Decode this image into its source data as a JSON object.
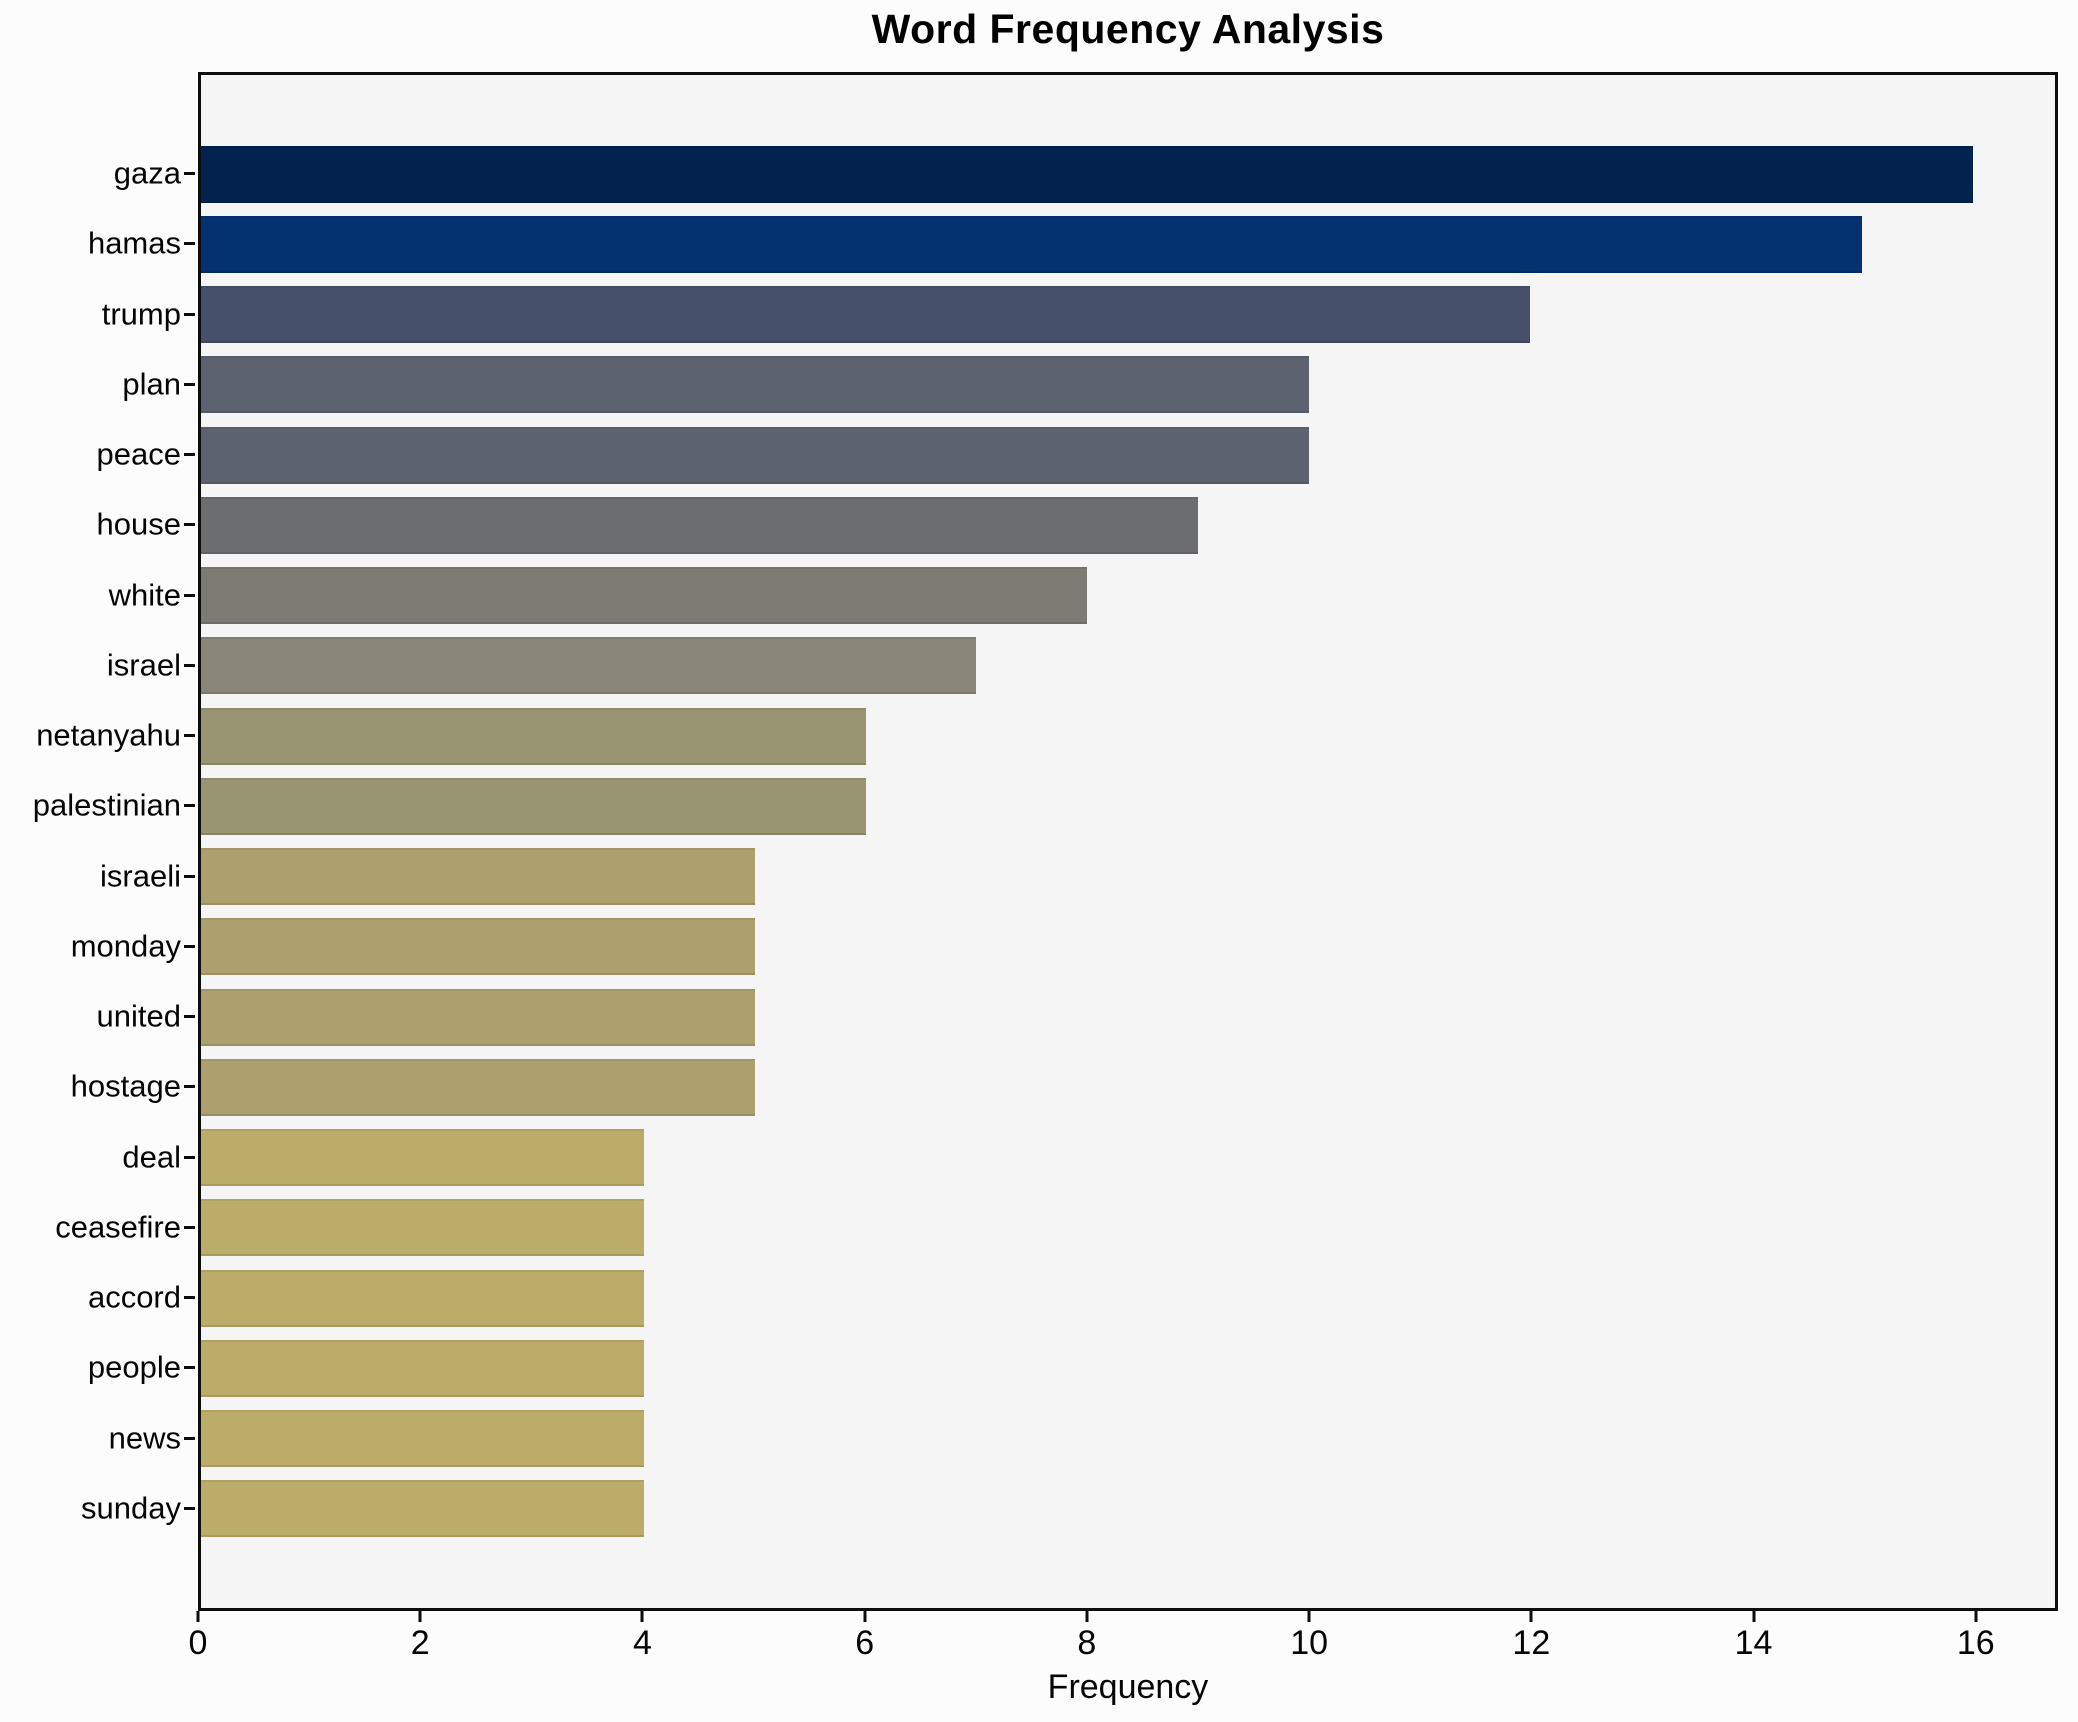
{
  "title": "Word Frequency Analysis",
  "xlabel": "Frequency",
  "chart_data": {
    "type": "bar",
    "orientation": "horizontal",
    "title": "Word Frequency Analysis",
    "xlabel": "Frequency",
    "ylabel": "",
    "grid": false,
    "legend": false,
    "xlim": [
      0,
      16.74
    ],
    "xticks": [
      "0",
      "2",
      "4",
      "6",
      "8",
      "10",
      "12",
      "14",
      "16"
    ],
    "xtick_values": [
      0,
      2,
      4,
      6,
      8,
      10,
      12,
      14,
      16
    ],
    "categories": [
      "gaza",
      "hamas",
      "trump",
      "plan",
      "peace",
      "house",
      "white",
      "israel",
      "netanyahu",
      "palestinian",
      "israeli",
      "monday",
      "united",
      "hostage",
      "deal",
      "ceasefire",
      "accord",
      "people",
      "news",
      "sunday"
    ],
    "values": [
      16,
      15,
      12,
      10,
      10,
      9,
      8,
      7,
      6,
      6,
      5,
      5,
      5,
      5,
      4,
      4,
      4,
      4,
      4,
      4
    ],
    "bar_colors": [
      "#02234e",
      "#043170",
      "#47506b",
      "#5d6270",
      "#5d6270",
      "#6c6d6f",
      "#7b7a73",
      "#898578",
      "#999472",
      "#999472",
      "#aba06e",
      "#aba06e",
      "#aba06e",
      "#aba06e",
      "#bbac69",
      "#bbac69",
      "#bbac69",
      "#bbac69",
      "#bbac69",
      "#bbac69"
    ],
    "plot_background": "#f5f5f6",
    "figure_background": "#fcfcfc",
    "axis_color": "#0d0d0d",
    "text_color": "#050505"
  }
}
